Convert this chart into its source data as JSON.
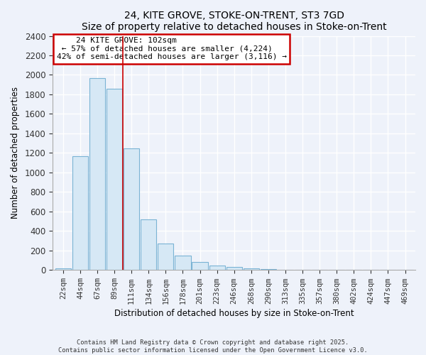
{
  "title": "24, KITE GROVE, STOKE-ON-TRENT, ST3 7GD",
  "subtitle": "Size of property relative to detached houses in Stoke-on-Trent",
  "xlabel": "Distribution of detached houses by size in Stoke-on-Trent",
  "ylabel": "Number of detached properties",
  "bar_color": "#d6e8f5",
  "bar_edge_color": "#7ab3d4",
  "background_color": "#eef2fa",
  "grid_color": "#ffffff",
  "categories": [
    "22sqm",
    "44sqm",
    "67sqm",
    "89sqm",
    "111sqm",
    "134sqm",
    "156sqm",
    "178sqm",
    "201sqm",
    "223sqm",
    "246sqm",
    "268sqm",
    "290sqm",
    "313sqm",
    "335sqm",
    "357sqm",
    "380sqm",
    "402sqm",
    "424sqm",
    "447sqm",
    "469sqm"
  ],
  "values": [
    20,
    1170,
    1970,
    1860,
    1250,
    520,
    275,
    150,
    85,
    45,
    35,
    15,
    8,
    3,
    1,
    1,
    0,
    0,
    0,
    0,
    0
  ],
  "ylim": [
    0,
    2400
  ],
  "yticks": [
    0,
    200,
    400,
    600,
    800,
    1000,
    1200,
    1400,
    1600,
    1800,
    2000,
    2200,
    2400
  ],
  "annotation_title": "24 KITE GROVE: 102sqm",
  "annotation_line1": "← 57% of detached houses are smaller (4,224)",
  "annotation_line2": "42% of semi-detached houses are larger (3,116) →",
  "annotation_box_color": "#ffffff",
  "annotation_box_edge": "#cc0000",
  "vline_color": "#cc0000",
  "vline_x": 3.5,
  "footnote1": "Contains HM Land Registry data © Crown copyright and database right 2025.",
  "footnote2": "Contains public sector information licensed under the Open Government Licence v3.0."
}
